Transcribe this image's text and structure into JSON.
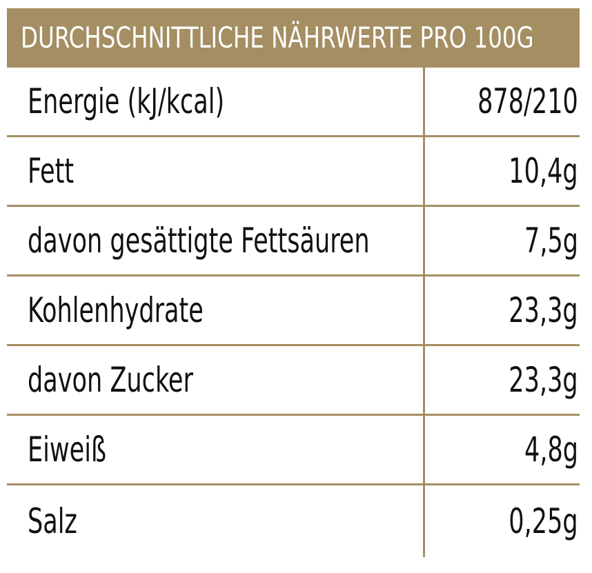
{
  "header": {
    "title": "DURCHSCHNITTLICHE NÄHRWERTE PRO 100G"
  },
  "rows": [
    {
      "label": "Energie (kJ/kcal)",
      "value": "878/210"
    },
    {
      "label": "Fett",
      "value": "10,4g"
    },
    {
      "label": "davon gesättigte Fettsäuren",
      "value": "7,5g"
    },
    {
      "label": "Kohlenhydrate",
      "value": "23,3g"
    },
    {
      "label": "davon Zucker",
      "value": "23,3g"
    },
    {
      "label": "Eiweiß",
      "value": "4,8g"
    },
    {
      "label": "Salz",
      "value": "0,25g"
    }
  ],
  "colors": {
    "accent": "#a48e62",
    "text": "#111111",
    "header_text": "#ffffff"
  }
}
